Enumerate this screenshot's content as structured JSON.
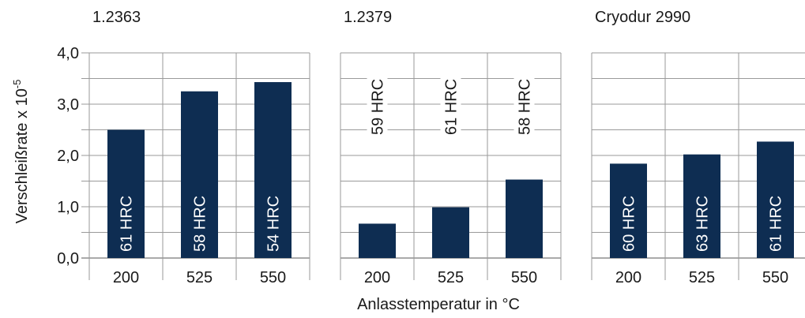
{
  "chart_data": {
    "type": "bar",
    "ylabel_main": "Verschleißrate x 10",
    "ylabel_exp": "-5",
    "xlabel": "Anlasstemperatur in °C",
    "ylim": [
      0,
      4.0
    ],
    "yticks": [
      "0,0",
      "1,0",
      "2,0",
      "3,0",
      "4,0"
    ],
    "grid": true,
    "bar_color": "#0e2d52",
    "panels": [
      {
        "title": "1.2363",
        "categories": [
          "200",
          "525",
          "550"
        ],
        "values": [
          2.5,
          3.25,
          3.43
        ],
        "hardness": [
          "61 HRC",
          "58 HRC",
          "54 HRC"
        ],
        "label_position": "inside"
      },
      {
        "title": "1.2379",
        "categories": [
          "200",
          "525",
          "550"
        ],
        "values": [
          0.67,
          0.99,
          1.53
        ],
        "hardness": [
          "59 HRC",
          "61 HRC",
          "58 HRC"
        ],
        "label_position": "above"
      },
      {
        "title": "Cryodur 2990",
        "categories": [
          "200",
          "525",
          "550"
        ],
        "values": [
          1.84,
          2.02,
          2.27
        ],
        "hardness": [
          "60 HRC",
          "63 HRC",
          "61 HRC"
        ],
        "label_position": "inside"
      }
    ]
  }
}
